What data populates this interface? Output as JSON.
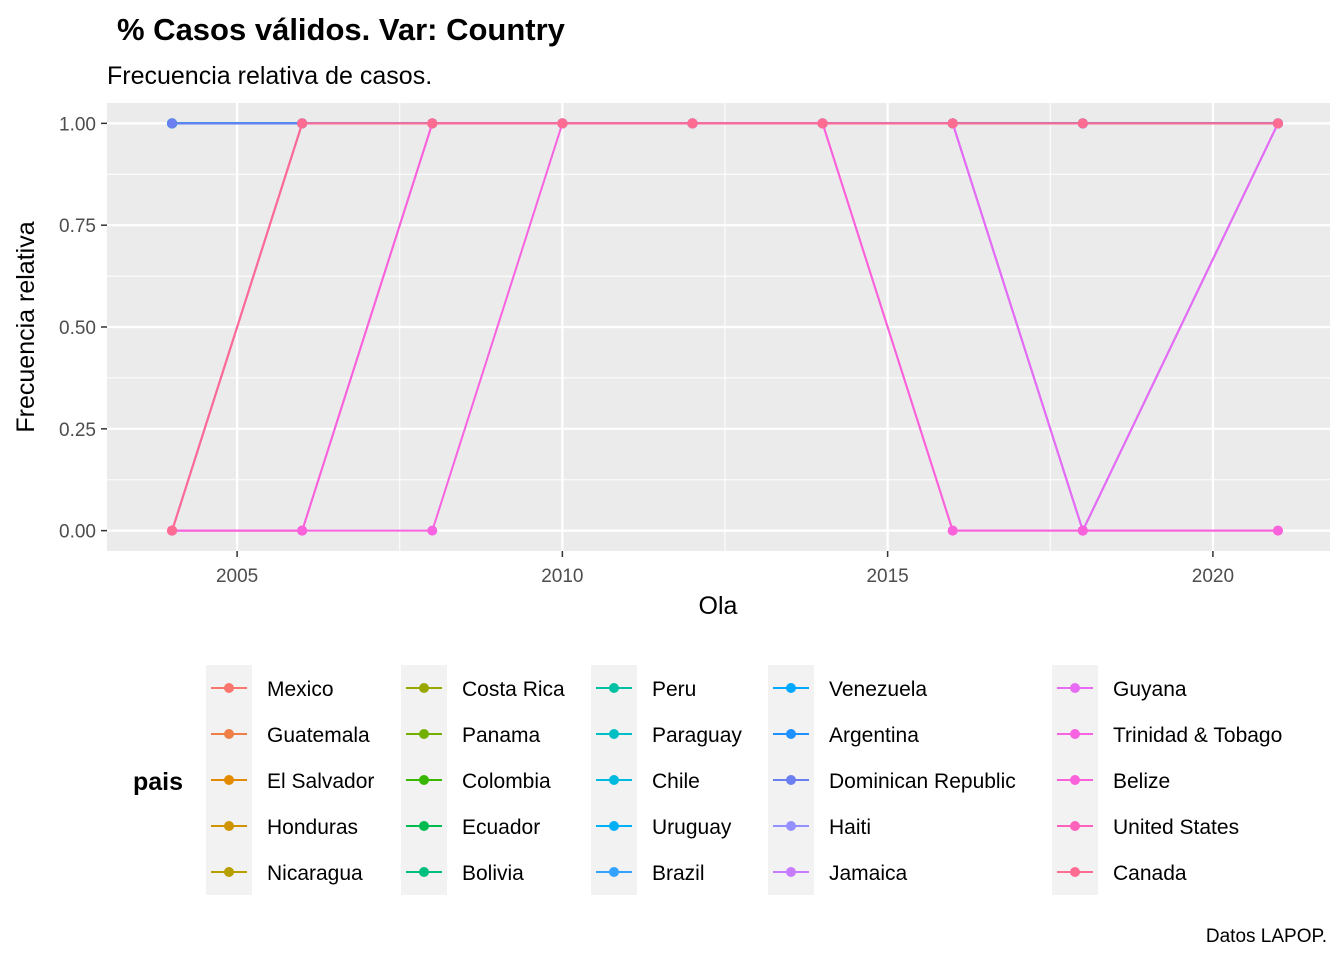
{
  "chart_data": {
    "type": "line",
    "title": "% Casos válidos. Var: Country",
    "subtitle": "Frecuencia relativa de casos.",
    "xlabel": "Ola",
    "ylabel": "Frecuencia relativa",
    "caption": "Datos LAPOP.",
    "legend_title": "pais",
    "legend_position": "bottom",
    "grid": true,
    "xlim": [
      2003,
      2021.8
    ],
    "ylim": [
      -0.05,
      1.05
    ],
    "x_ticks": [
      2005,
      2010,
      2015,
      2020
    ],
    "x_tick_labels": [
      "2005",
      "2010",
      "2015",
      "2020"
    ],
    "y_ticks": [
      0,
      0.25,
      0.5,
      0.75,
      1
    ],
    "y_tick_labels": [
      "0.00",
      "0.25",
      "0.50",
      "0.75",
      "1.00"
    ],
    "x": [
      2004,
      2006,
      2008,
      2010,
      2012,
      2014,
      2016,
      2018,
      2021
    ],
    "series": [
      {
        "name": "Mexico",
        "color": "#F8766D",
        "values": [
          1,
          1,
          1,
          1,
          1,
          1,
          1,
          1,
          1
        ]
      },
      {
        "name": "Guatemala",
        "color": "#EF7F47",
        "values": [
          1,
          1,
          1,
          1,
          1,
          1,
          1,
          1,
          1
        ]
      },
      {
        "name": "El Salvador",
        "color": "#E28A00",
        "values": [
          1,
          1,
          1,
          1,
          1,
          1,
          1,
          1,
          1
        ]
      },
      {
        "name": "Honduras",
        "color": "#D09400",
        "values": [
          1,
          1,
          1,
          1,
          1,
          1,
          1,
          1,
          1
        ]
      },
      {
        "name": "Nicaragua",
        "color": "#B79F00",
        "values": [
          1,
          1,
          1,
          1,
          1,
          1,
          1,
          1,
          1
        ]
      },
      {
        "name": "Costa Rica",
        "color": "#99A800",
        "values": [
          1,
          1,
          1,
          1,
          1,
          1,
          1,
          1,
          1
        ]
      },
      {
        "name": "Panama",
        "color": "#72B000",
        "values": [
          1,
          1,
          1,
          1,
          1,
          1,
          1,
          1,
          1
        ]
      },
      {
        "name": "Colombia",
        "color": "#39B600",
        "values": [
          1,
          1,
          1,
          1,
          1,
          1,
          1,
          1,
          1
        ]
      },
      {
        "name": "Ecuador",
        "color": "#00BB4E",
        "values": [
          1,
          1,
          1,
          1,
          1,
          1,
          1,
          1,
          1
        ]
      },
      {
        "name": "Bolivia",
        "color": "#00BF7D",
        "values": [
          1,
          1,
          1,
          1,
          1,
          1,
          1,
          1,
          1
        ]
      },
      {
        "name": "Peru",
        "color": "#00C1A3",
        "values": [
          1,
          1,
          1,
          1,
          1,
          1,
          1,
          1,
          1
        ]
      },
      {
        "name": "Paraguay",
        "color": "#00BFC4",
        "values": [
          1,
          1,
          1,
          1,
          1,
          1,
          1,
          1,
          1
        ]
      },
      {
        "name": "Chile",
        "color": "#00BAE0",
        "values": [
          1,
          1,
          1,
          1,
          1,
          1,
          1,
          1,
          1
        ]
      },
      {
        "name": "Uruguay",
        "color": "#00B0F6",
        "values": [
          1,
          1,
          1,
          1,
          1,
          1,
          1,
          1,
          1
        ]
      },
      {
        "name": "Brazil",
        "color": "#35A2FF",
        "values": [
          1,
          1,
          1,
          1,
          1,
          1,
          1,
          1,
          1
        ]
      },
      {
        "name": "Venezuela",
        "color": "#00A9FF",
        "values": [
          1,
          1,
          1,
          1,
          1,
          1,
          1,
          1,
          1
        ]
      },
      {
        "name": "Argentina",
        "color": "#1E90FF",
        "values": [
          1,
          1,
          1,
          1,
          1,
          1,
          1,
          1,
          1
        ]
      },
      {
        "name": "Dominican Republic",
        "color": "#6B7FF0",
        "values": [
          1,
          1,
          1,
          1,
          1,
          1,
          1,
          1,
          1
        ]
      },
      {
        "name": "Haiti",
        "color": "#9590FF",
        "values": [
          0,
          1,
          1,
          1,
          1,
          1,
          1,
          0,
          1
        ]
      },
      {
        "name": "Jamaica",
        "color": "#C77CFF",
        "values": [
          0,
          1,
          1,
          1,
          1,
          1,
          1,
          0,
          1
        ]
      },
      {
        "name": "Guyana",
        "color": "#E76BF3",
        "values": [
          0,
          0,
          1,
          1,
          1,
          1,
          1,
          0,
          1
        ]
      },
      {
        "name": "Trinidad & Tobago",
        "color": "#F763E0",
        "values": [
          0,
          0,
          0,
          1,
          1,
          1,
          0,
          0,
          0
        ]
      },
      {
        "name": "Belize",
        "color": "#FA62DB",
        "values": [
          0,
          0,
          1,
          1,
          1,
          1,
          0,
          0,
          0
        ]
      },
      {
        "name": "United States",
        "color": "#FF62BC",
        "values": [
          0,
          1,
          1,
          1,
          1,
          1,
          1,
          1,
          1
        ]
      },
      {
        "name": "Canada",
        "color": "#FF6C91",
        "values": [
          0,
          1,
          1,
          1,
          1,
          1,
          1,
          1,
          1
        ]
      }
    ]
  }
}
